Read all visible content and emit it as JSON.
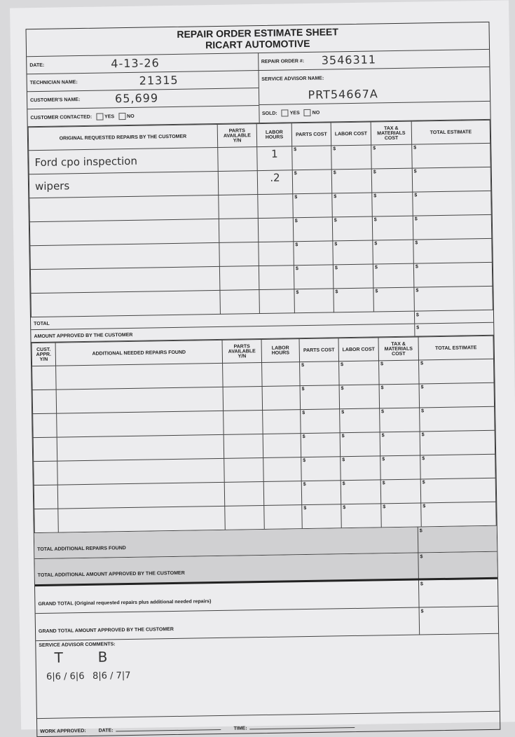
{
  "title_line1": "REPAIR ORDER ESTIMATE SHEET",
  "title_line2": "RICART AUTOMOTIVE",
  "info": {
    "date_label": "DATE:",
    "date_value": "4-13-26",
    "technician_label": "TECHNICIAN NAME:",
    "technician_value": "21315",
    "customer_label": "CUSTOMER'S NAME:",
    "customer_value": "65,699",
    "contacted_label": "CUSTOMER CONTACTED:",
    "yes": "YES",
    "no": "NO",
    "repair_order_label": "REPAIR ORDER #:",
    "repair_order_value": "3546311",
    "advisor_label": "SERVICE ADVISOR NAME:",
    "advisor_value": "PRT54667A",
    "sold_label": "SOLD:"
  },
  "section1": {
    "headers": [
      "ORIGINAL REQUESTED REPAIRS BY THE CUSTOMER",
      "PARTS AVAILABLE Y/N",
      "LABOR HOURS",
      "PARTS COST",
      "LABOR COST",
      "TAX & MATERIALS COST",
      "TOTAL ESTIMATE"
    ],
    "rows": [
      {
        "desc": "Ford cpo inspection",
        "hours": "1"
      },
      {
        "desc": "wipers",
        "hours": ".2"
      },
      {
        "desc": "",
        "hours": ""
      },
      {
        "desc": "",
        "hours": ""
      },
      {
        "desc": "",
        "hours": ""
      },
      {
        "desc": "",
        "hours": ""
      },
      {
        "desc": "",
        "hours": ""
      }
    ],
    "currency": "$",
    "total_label": "TOTAL",
    "approved_label": "AMOUNT APPROVED BY THE CUSTOMER"
  },
  "section2": {
    "headers": [
      "CUST. APPR. Y/N",
      "ADDITIONAL NEEDED REPAIRS FOUND",
      "PARTS AVAILABLE Y/N",
      "LABOR HOURS",
      "PARTS COST",
      "LABOR COST",
      "TAX & MATERIALS COST",
      "TOTAL ESTIMATE"
    ],
    "row_count": 7,
    "total_label": "TOTAL ADDITIONAL REPAIRS FOUND",
    "approved_label": "TOTAL ADDITIONAL AMOUNT APPROVED BY THE CUSTOMER"
  },
  "grand_total_label": "GRAND TOTAL (Original requested repairs plus additional needed repairs)",
  "grand_total_approved_label": "GRAND TOTAL AMOUNT APPROVED BY THE CUSTOMER",
  "comments": {
    "label": "SERVICE ADVISOR COMMENTS:",
    "t": "T",
    "t_values": "6|6 / 6|6",
    "b": "B",
    "b_values": "8|6 / 7|7"
  },
  "footer": {
    "work_approved": "WORK APPROVED:",
    "date": "DATE:",
    "time": "TIME:"
  }
}
